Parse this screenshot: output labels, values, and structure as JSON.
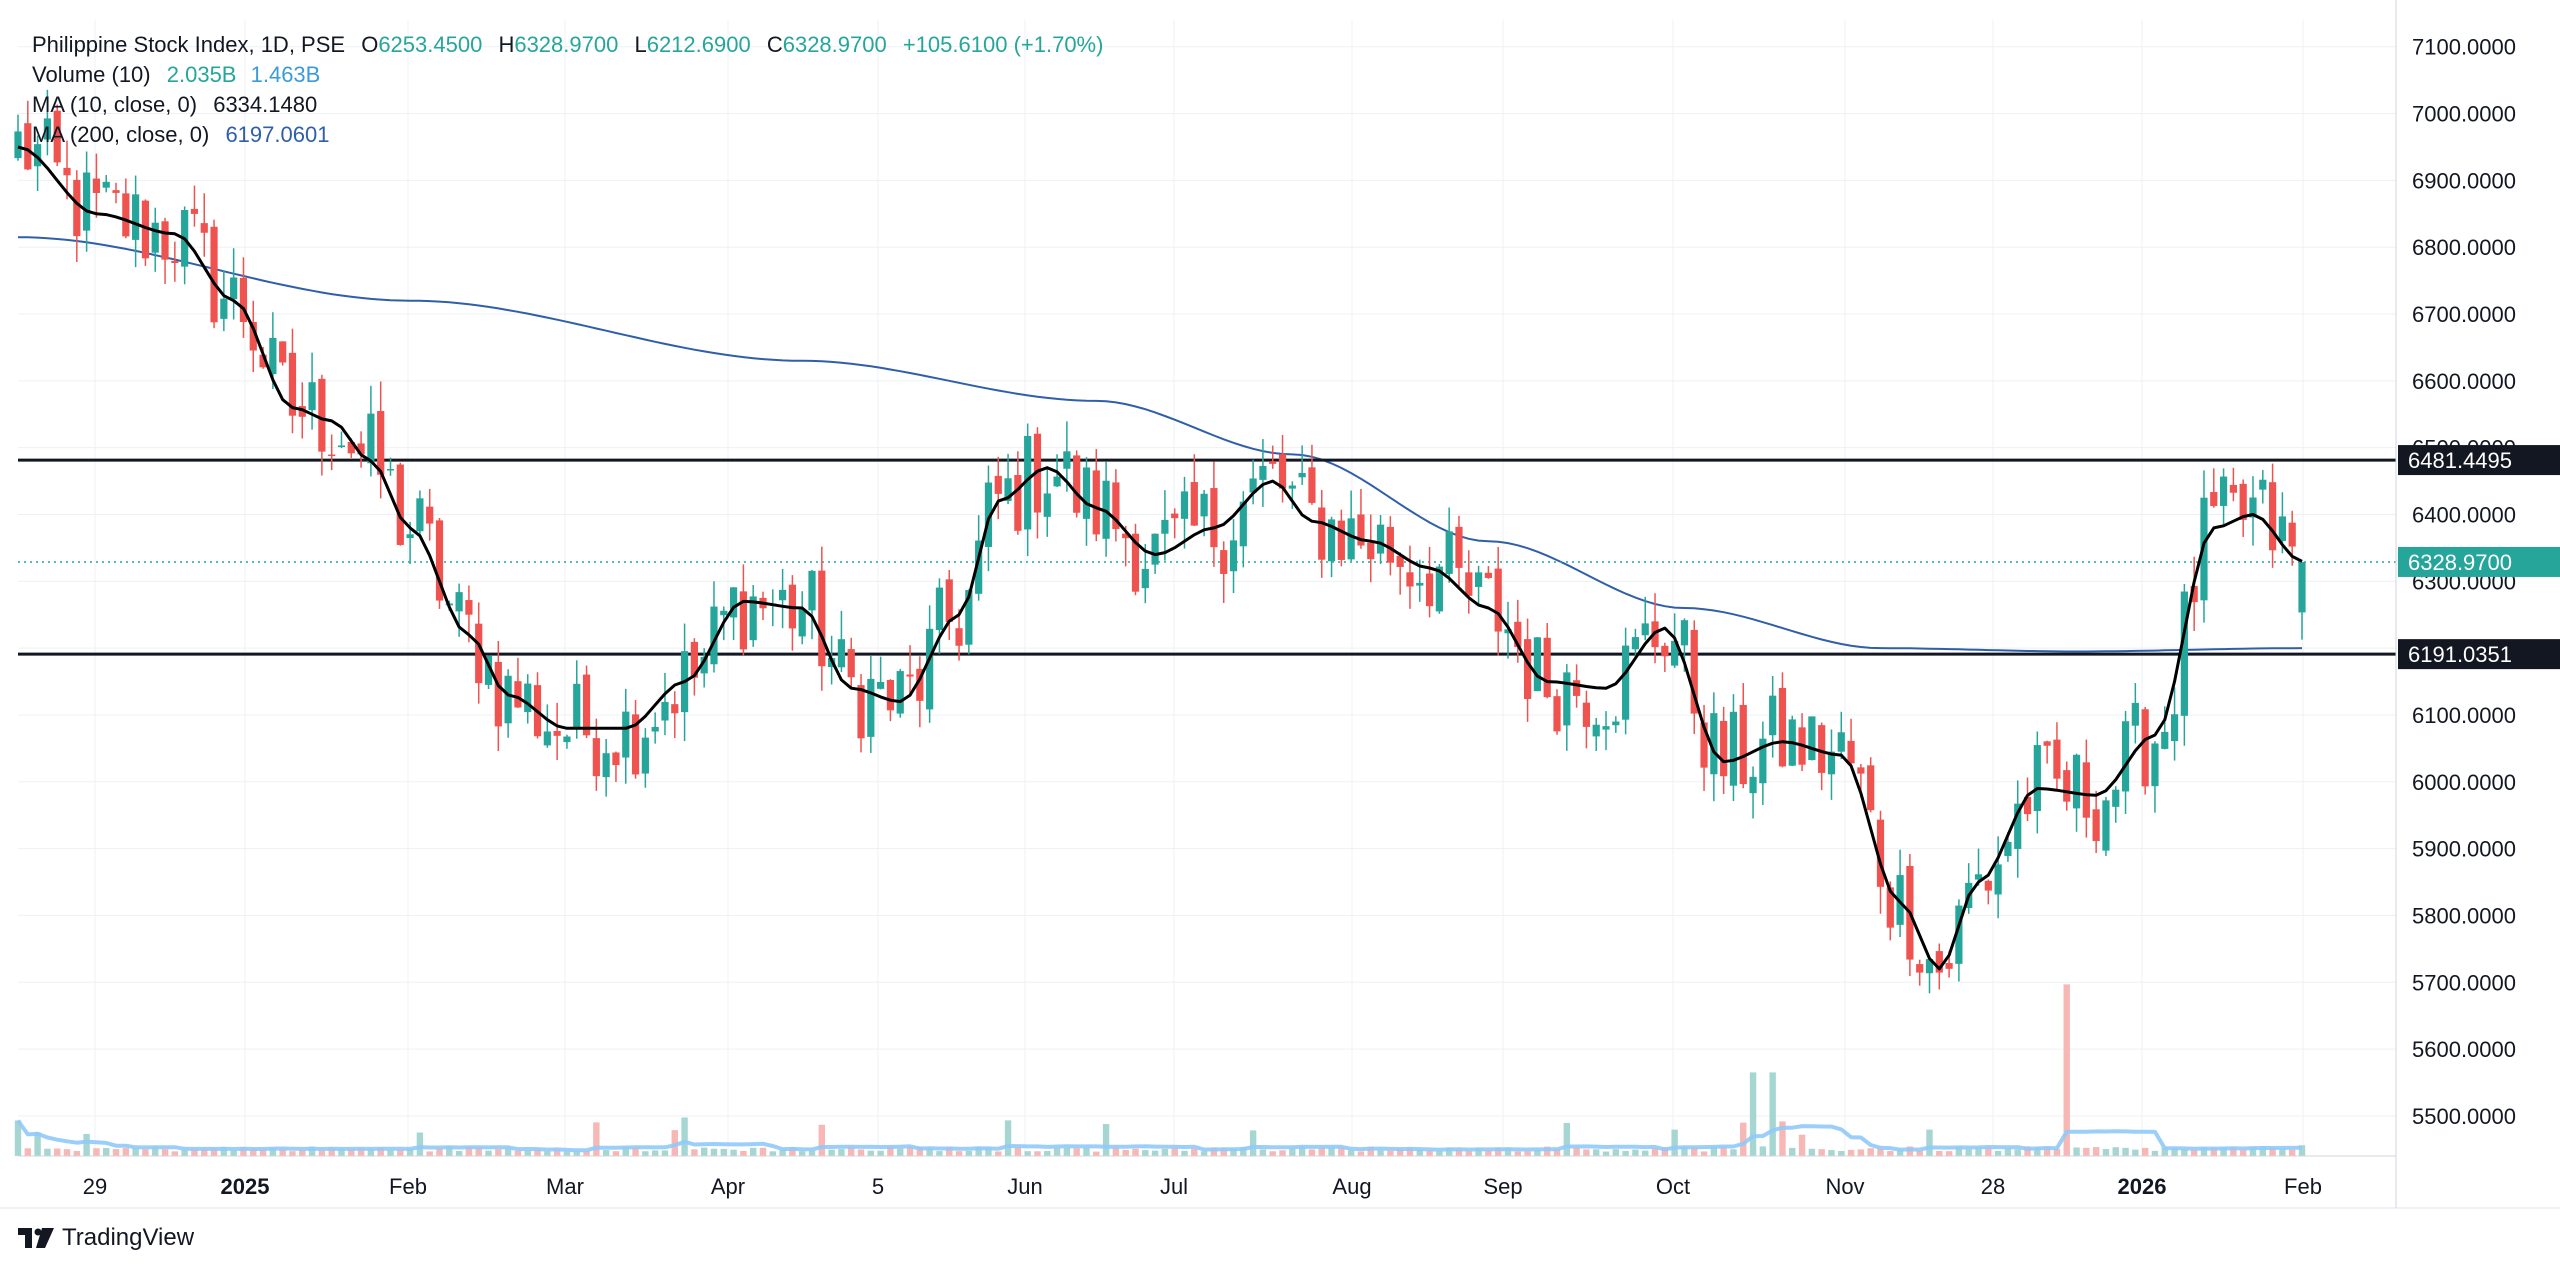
{
  "legend": {
    "symbol": "Philippine Stock Index, 1D, PSE",
    "o_key": "O",
    "o_val": "6253.4500",
    "h_key": "H",
    "h_val": "6328.9700",
    "l_key": "L",
    "l_val": "6212.6900",
    "c_key": "C",
    "c_val": "6328.9700",
    "change": "+105.6100 (+1.70%)",
    "volume_label": "Volume (10)",
    "volume_val": "2.035B",
    "volume_ma": "1.463B",
    "ma10_label": "MA (10, close, 0)",
    "ma10_val": "6334.1480",
    "ma200_label": "MA (200, close, 0)",
    "ma200_val": "6197.0601"
  },
  "brand": {
    "name": "TradingView",
    "icon": "tradingview-logo-icon"
  },
  "colors": {
    "up": "#26a69a",
    "down": "#ef5350",
    "ma10": "#000000",
    "ma200": "#2f5fa8",
    "volume_ma": "#90caf9",
    "grid": "#eef0f3"
  },
  "chart_data": {
    "type": "candlestick",
    "title": "Philippine Stock Index, 1D, PSE",
    "x_ticks": [
      "29",
      "2025",
      "Feb",
      "Mar",
      "Apr",
      "5",
      "Jun",
      "Jul",
      "Aug",
      "Sep",
      "Oct",
      "Nov",
      "28",
      "2026",
      "Feb"
    ],
    "y_ticks": [
      "7100.0000",
      "7000.0000",
      "6900.0000",
      "6800.0000",
      "6700.0000",
      "6600.0000",
      "6500.0000",
      "6400.0000",
      "6300.0000",
      "6200.0000",
      "6100.0000",
      "6000.0000",
      "5900.0000",
      "5800.0000",
      "5700.0000",
      "5600.0000",
      "5500.0000"
    ],
    "ylim": [
      5440,
      7140
    ],
    "grid": true,
    "horizontal_lines": [
      {
        "value": 6481.4495,
        "label": "6481.4495"
      },
      {
        "value": 6191.0351,
        "label": "6191.0351"
      }
    ],
    "last_price": {
      "value": 6328.97,
      "label": "6328.9700"
    },
    "ma10_anchors": [
      [
        0,
        6950
      ],
      [
        8,
        6850
      ],
      [
        16,
        6820
      ],
      [
        22,
        6720
      ],
      [
        28,
        6560
      ],
      [
        32,
        6540
      ],
      [
        36,
        6480
      ],
      [
        40,
        6380
      ],
      [
        46,
        6220
      ],
      [
        50,
        6130
      ],
      [
        56,
        6080
      ],
      [
        62,
        6080
      ],
      [
        68,
        6150
      ],
      [
        74,
        6270
      ],
      [
        80,
        6260
      ],
      [
        85,
        6140
      ],
      [
        90,
        6120
      ],
      [
        96,
        6250
      ],
      [
        100,
        6420
      ],
      [
        105,
        6470
      ],
      [
        110,
        6410
      ],
      [
        116,
        6340
      ],
      [
        122,
        6380
      ],
      [
        128,
        6450
      ],
      [
        132,
        6390
      ],
      [
        138,
        6360
      ],
      [
        144,
        6320
      ],
      [
        150,
        6260
      ],
      [
        156,
        6150
      ],
      [
        162,
        6140
      ],
      [
        168,
        6230
      ],
      [
        174,
        6030
      ],
      [
        180,
        6060
      ],
      [
        186,
        6040
      ],
      [
        192,
        5820
      ],
      [
        196,
        5720
      ],
      [
        200,
        5850
      ],
      [
        206,
        5990
      ],
      [
        212,
        5980
      ],
      [
        218,
        6070
      ],
      [
        224,
        6380
      ],
      [
        228,
        6400
      ],
      [
        233,
        6330
      ]
    ],
    "ma200_anchors": [
      [
        0,
        6815
      ],
      [
        40,
        6720
      ],
      [
        80,
        6630
      ],
      [
        110,
        6570
      ],
      [
        130,
        6490
      ],
      [
        150,
        6360
      ],
      [
        170,
        6260
      ],
      [
        190,
        6200
      ],
      [
        210,
        6195
      ],
      [
        233,
        6200
      ]
    ],
    "volume": {
      "ylim": [
        0,
        4000000000
      ],
      "ma_level_last": 1463000000,
      "last": 2035000000
    }
  }
}
